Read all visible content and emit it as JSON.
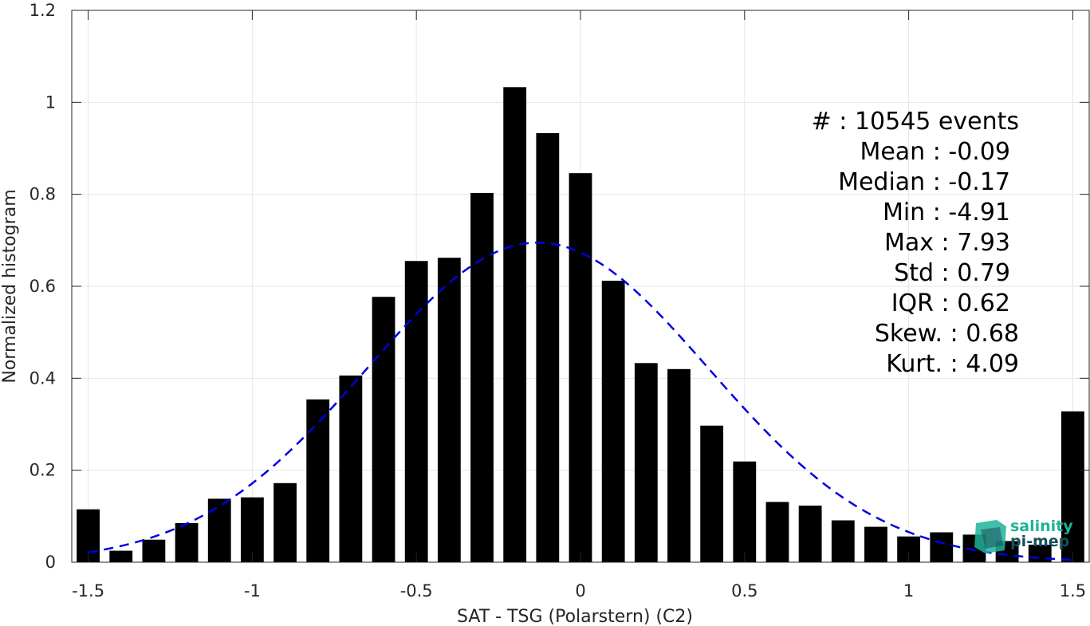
{
  "chart_data": {
    "type": "bar",
    "xlabel": "SAT - TSG (Polarstern) (C2)",
    "ylabel": "Normalized histogram",
    "xlim": [
      -1.55,
      1.55
    ],
    "ylim": [
      0,
      1.2
    ],
    "xticks": [
      -1.5,
      -1,
      -0.5,
      0,
      0.5,
      1,
      1.5
    ],
    "xtick_labels": [
      "-1.5",
      "-1",
      "-0.5",
      "0",
      "0.5",
      "1",
      "1.5"
    ],
    "yticks": [
      0,
      0.2,
      0.4,
      0.6,
      0.8,
      1,
      1.2
    ],
    "ytick_labels": [
      "0",
      "0.2",
      "0.4",
      "0.6",
      "0.8",
      "1",
      "1.2"
    ],
    "grid": true,
    "bar_width": 0.07,
    "x": [
      -1.5,
      -1.4,
      -1.3,
      -1.2,
      -1.1,
      -1.0,
      -0.9,
      -0.8,
      -0.7,
      -0.6,
      -0.5,
      -0.4,
      -0.3,
      -0.2,
      -0.1,
      0.0,
      0.1,
      0.2,
      0.3,
      0.4,
      0.5,
      0.6,
      0.7,
      0.8,
      0.9,
      1.0,
      1.1,
      1.2,
      1.3,
      1.4,
      1.5
    ],
    "values": [
      0.115,
      0.025,
      0.049,
      0.085,
      0.138,
      0.141,
      0.172,
      0.354,
      0.406,
      0.577,
      0.655,
      0.662,
      0.803,
      1.033,
      0.933,
      0.846,
      0.612,
      0.433,
      0.42,
      0.297,
      0.219,
      0.131,
      0.123,
      0.091,
      0.077,
      0.056,
      0.065,
      0.06,
      0.046,
      0.038,
      0.328
    ],
    "fit_curve": {
      "style": "dashed",
      "color": "#0000e6",
      "mean": -0.13,
      "peak": 0.695,
      "std": 0.52,
      "x_start": -1.5,
      "x_end": 1.5
    },
    "stats_lines": [
      "#  : 10545 events",
      "Mean : -0.09",
      "Median : -0.17",
      "Min : -4.91",
      "Max : 7.93",
      "Std : 0.79",
      "IQR : 0.62",
      "Skew. : 0.68",
      "Kurt. : 4.09"
    ]
  },
  "logo": {
    "line1": "salinity",
    "line2": "pi-mep"
  },
  "colors": {
    "bar": "#000000",
    "fit": "#0000e6",
    "grid": "#e6e6e6",
    "axis": "#262626",
    "logo_teal": "#1fb39a",
    "logo_dark": "#16505a"
  }
}
